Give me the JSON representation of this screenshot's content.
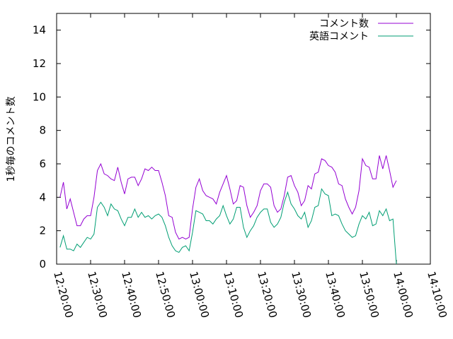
{
  "chart_data": {
    "type": "line",
    "ylabel": "1秒毎のコメント数",
    "xlabel": "",
    "title": "",
    "ylim": [
      0,
      15
    ],
    "xlim_minutes": [
      20,
      130
    ],
    "x_ticks": [
      "12:20:00",
      "12:30:00",
      "12:40:00",
      "12:50:00",
      "13:00:00",
      "13:10:00",
      "13:20:00",
      "13:30:00",
      "13:40:00",
      "13:50:00",
      "14:00:00",
      "14:10:00"
    ],
    "y_ticks": [
      "0",
      "2",
      "4",
      "6",
      "8",
      "10",
      "12",
      "14"
    ],
    "grid": false,
    "legend_position": "top-right",
    "x": [
      "12:21",
      "12:22",
      "12:23",
      "12:24",
      "12:25",
      "12:26",
      "12:27",
      "12:28",
      "12:29",
      "12:30",
      "12:31",
      "12:32",
      "12:33",
      "12:34",
      "12:35",
      "12:36",
      "12:37",
      "12:38",
      "12:39",
      "12:40",
      "12:41",
      "12:42",
      "12:43",
      "12:44",
      "12:45",
      "12:46",
      "12:47",
      "12:48",
      "12:49",
      "12:50",
      "12:51",
      "12:52",
      "12:53",
      "12:54",
      "12:55",
      "12:56",
      "12:57",
      "12:58",
      "12:59",
      "13:00",
      "13:01",
      "13:02",
      "13:03",
      "13:04",
      "13:05",
      "13:06",
      "13:07",
      "13:08",
      "13:09",
      "13:10",
      "13:11",
      "13:12",
      "13:13",
      "13:14",
      "13:15",
      "13:16",
      "13:17",
      "13:18",
      "13:19",
      "13:20",
      "13:21",
      "13:22",
      "13:23",
      "13:24",
      "13:25",
      "13:26",
      "13:27",
      "13:28",
      "13:29",
      "13:30",
      "13:31",
      "13:32",
      "13:33",
      "13:34",
      "13:35",
      "13:36",
      "13:37",
      "13:38",
      "13:39",
      "13:40",
      "13:41",
      "13:42",
      "13:43",
      "13:44",
      "13:45",
      "13:46",
      "13:47",
      "13:48",
      "13:49",
      "13:50",
      "13:51",
      "13:52",
      "13:53",
      "13:54",
      "13:55",
      "13:56",
      "13:57",
      "13:58",
      "13:59",
      "14:00"
    ],
    "series": [
      {
        "name": "コメント数",
        "color": "#9400d3",
        "values": [
          4.0,
          4.9,
          3.3,
          3.9,
          3.1,
          2.3,
          2.3,
          2.7,
          2.9,
          2.9,
          4.0,
          5.6,
          6.0,
          5.4,
          5.3,
          5.1,
          5.0,
          5.8,
          4.9,
          4.2,
          5.1,
          5.2,
          5.2,
          4.7,
          5.1,
          5.7,
          5.6,
          5.8,
          5.6,
          5.6,
          4.9,
          4.1,
          2.9,
          2.8,
          1.9,
          1.5,
          1.6,
          1.5,
          1.6,
          3.3,
          4.6,
          5.1,
          4.4,
          4.1,
          4.0,
          3.9,
          3.6,
          4.3,
          4.8,
          5.3,
          4.5,
          3.6,
          3.8,
          4.7,
          4.6,
          3.5,
          2.8,
          3.1,
          3.5,
          4.4,
          4.8,
          4.8,
          4.6,
          3.5,
          3.1,
          3.3,
          4.1,
          5.2,
          5.3,
          4.7,
          4.3,
          3.5,
          3.8,
          4.7,
          4.5,
          5.4,
          5.5,
          6.3,
          6.2,
          5.9,
          5.8,
          5.5,
          4.8,
          4.7,
          3.9,
          3.4,
          3.0,
          3.4,
          4.4,
          6.3,
          5.9,
          5.8,
          5.1,
          5.1,
          6.5,
          5.7,
          6.5,
          5.6,
          4.6,
          5.0
        ]
      },
      {
        "name": "英語コメント",
        "color": "#009e73",
        "values": [
          1.0,
          1.7,
          0.9,
          0.9,
          0.8,
          1.2,
          1.0,
          1.3,
          1.6,
          1.5,
          1.8,
          3.4,
          3.7,
          3.4,
          2.9,
          3.6,
          3.3,
          3.2,
          2.7,
          2.3,
          2.8,
          2.8,
          3.3,
          2.8,
          3.1,
          2.8,
          2.9,
          2.7,
          2.9,
          3.0,
          2.8,
          2.3,
          1.6,
          1.1,
          0.8,
          0.7,
          1.0,
          1.1,
          0.8,
          1.9,
          3.2,
          3.1,
          3.0,
          2.6,
          2.6,
          2.4,
          2.7,
          2.9,
          3.5,
          2.9,
          2.4,
          2.7,
          3.4,
          3.4,
          2.2,
          1.6,
          2.0,
          2.3,
          2.8,
          3.1,
          3.3,
          3.3,
          2.5,
          2.2,
          2.4,
          2.8,
          3.7,
          4.3,
          3.6,
          3.3,
          2.9,
          2.7,
          3.1,
          2.2,
          2.6,
          3.4,
          3.5,
          4.5,
          4.2,
          4.1,
          2.9,
          3.0,
          2.9,
          2.4,
          2.0,
          1.8,
          1.6,
          1.7,
          2.4,
          2.9,
          2.7,
          3.1,
          2.3,
          2.4,
          3.2,
          2.9,
          3.3,
          2.6,
          2.7,
          0.0
        ]
      }
    ]
  }
}
